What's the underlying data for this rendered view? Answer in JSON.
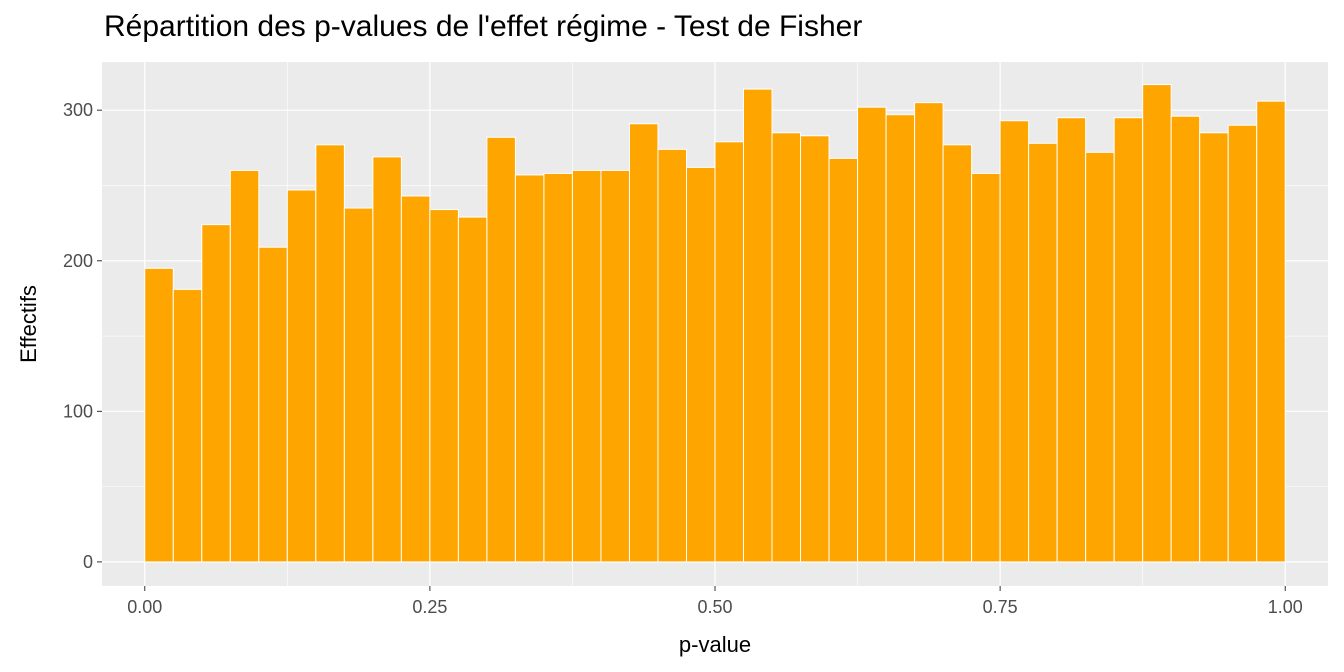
{
  "chart_data": {
    "type": "bar",
    "title": "Répartition des p-values de l'effet régime - Test de Fisher",
    "xlabel": "p-value",
    "ylabel": "Effectifs",
    "x_ticks": [
      "0.00",
      "0.25",
      "0.50",
      "0.75",
      "1.00"
    ],
    "x_tick_values": [
      0,
      0.25,
      0.5,
      0.75,
      1.0
    ],
    "y_ticks": [
      "0",
      "100",
      "200",
      "300"
    ],
    "y_tick_values": [
      0,
      100,
      200,
      300
    ],
    "xlim": [
      -0.0375,
      1.0375
    ],
    "ylim": [
      -16,
      332
    ],
    "grid": true,
    "legend": "none",
    "bins": 40,
    "bin_width": 0.025,
    "values": [
      195,
      181,
      224,
      260,
      209,
      247,
      277,
      235,
      269,
      243,
      234,
      229,
      282,
      257,
      258,
      260,
      260,
      291,
      274,
      262,
      279,
      314,
      285,
      283,
      268,
      302,
      297,
      305,
      277,
      258,
      293,
      278,
      295,
      272,
      295,
      317,
      296,
      285,
      290,
      306
    ],
    "colors": {
      "bar_fill": "#FFA500",
      "bar_stroke": "#FFFFFF",
      "panel": "#EBEBEB",
      "grid": "#FFFFFF"
    }
  }
}
